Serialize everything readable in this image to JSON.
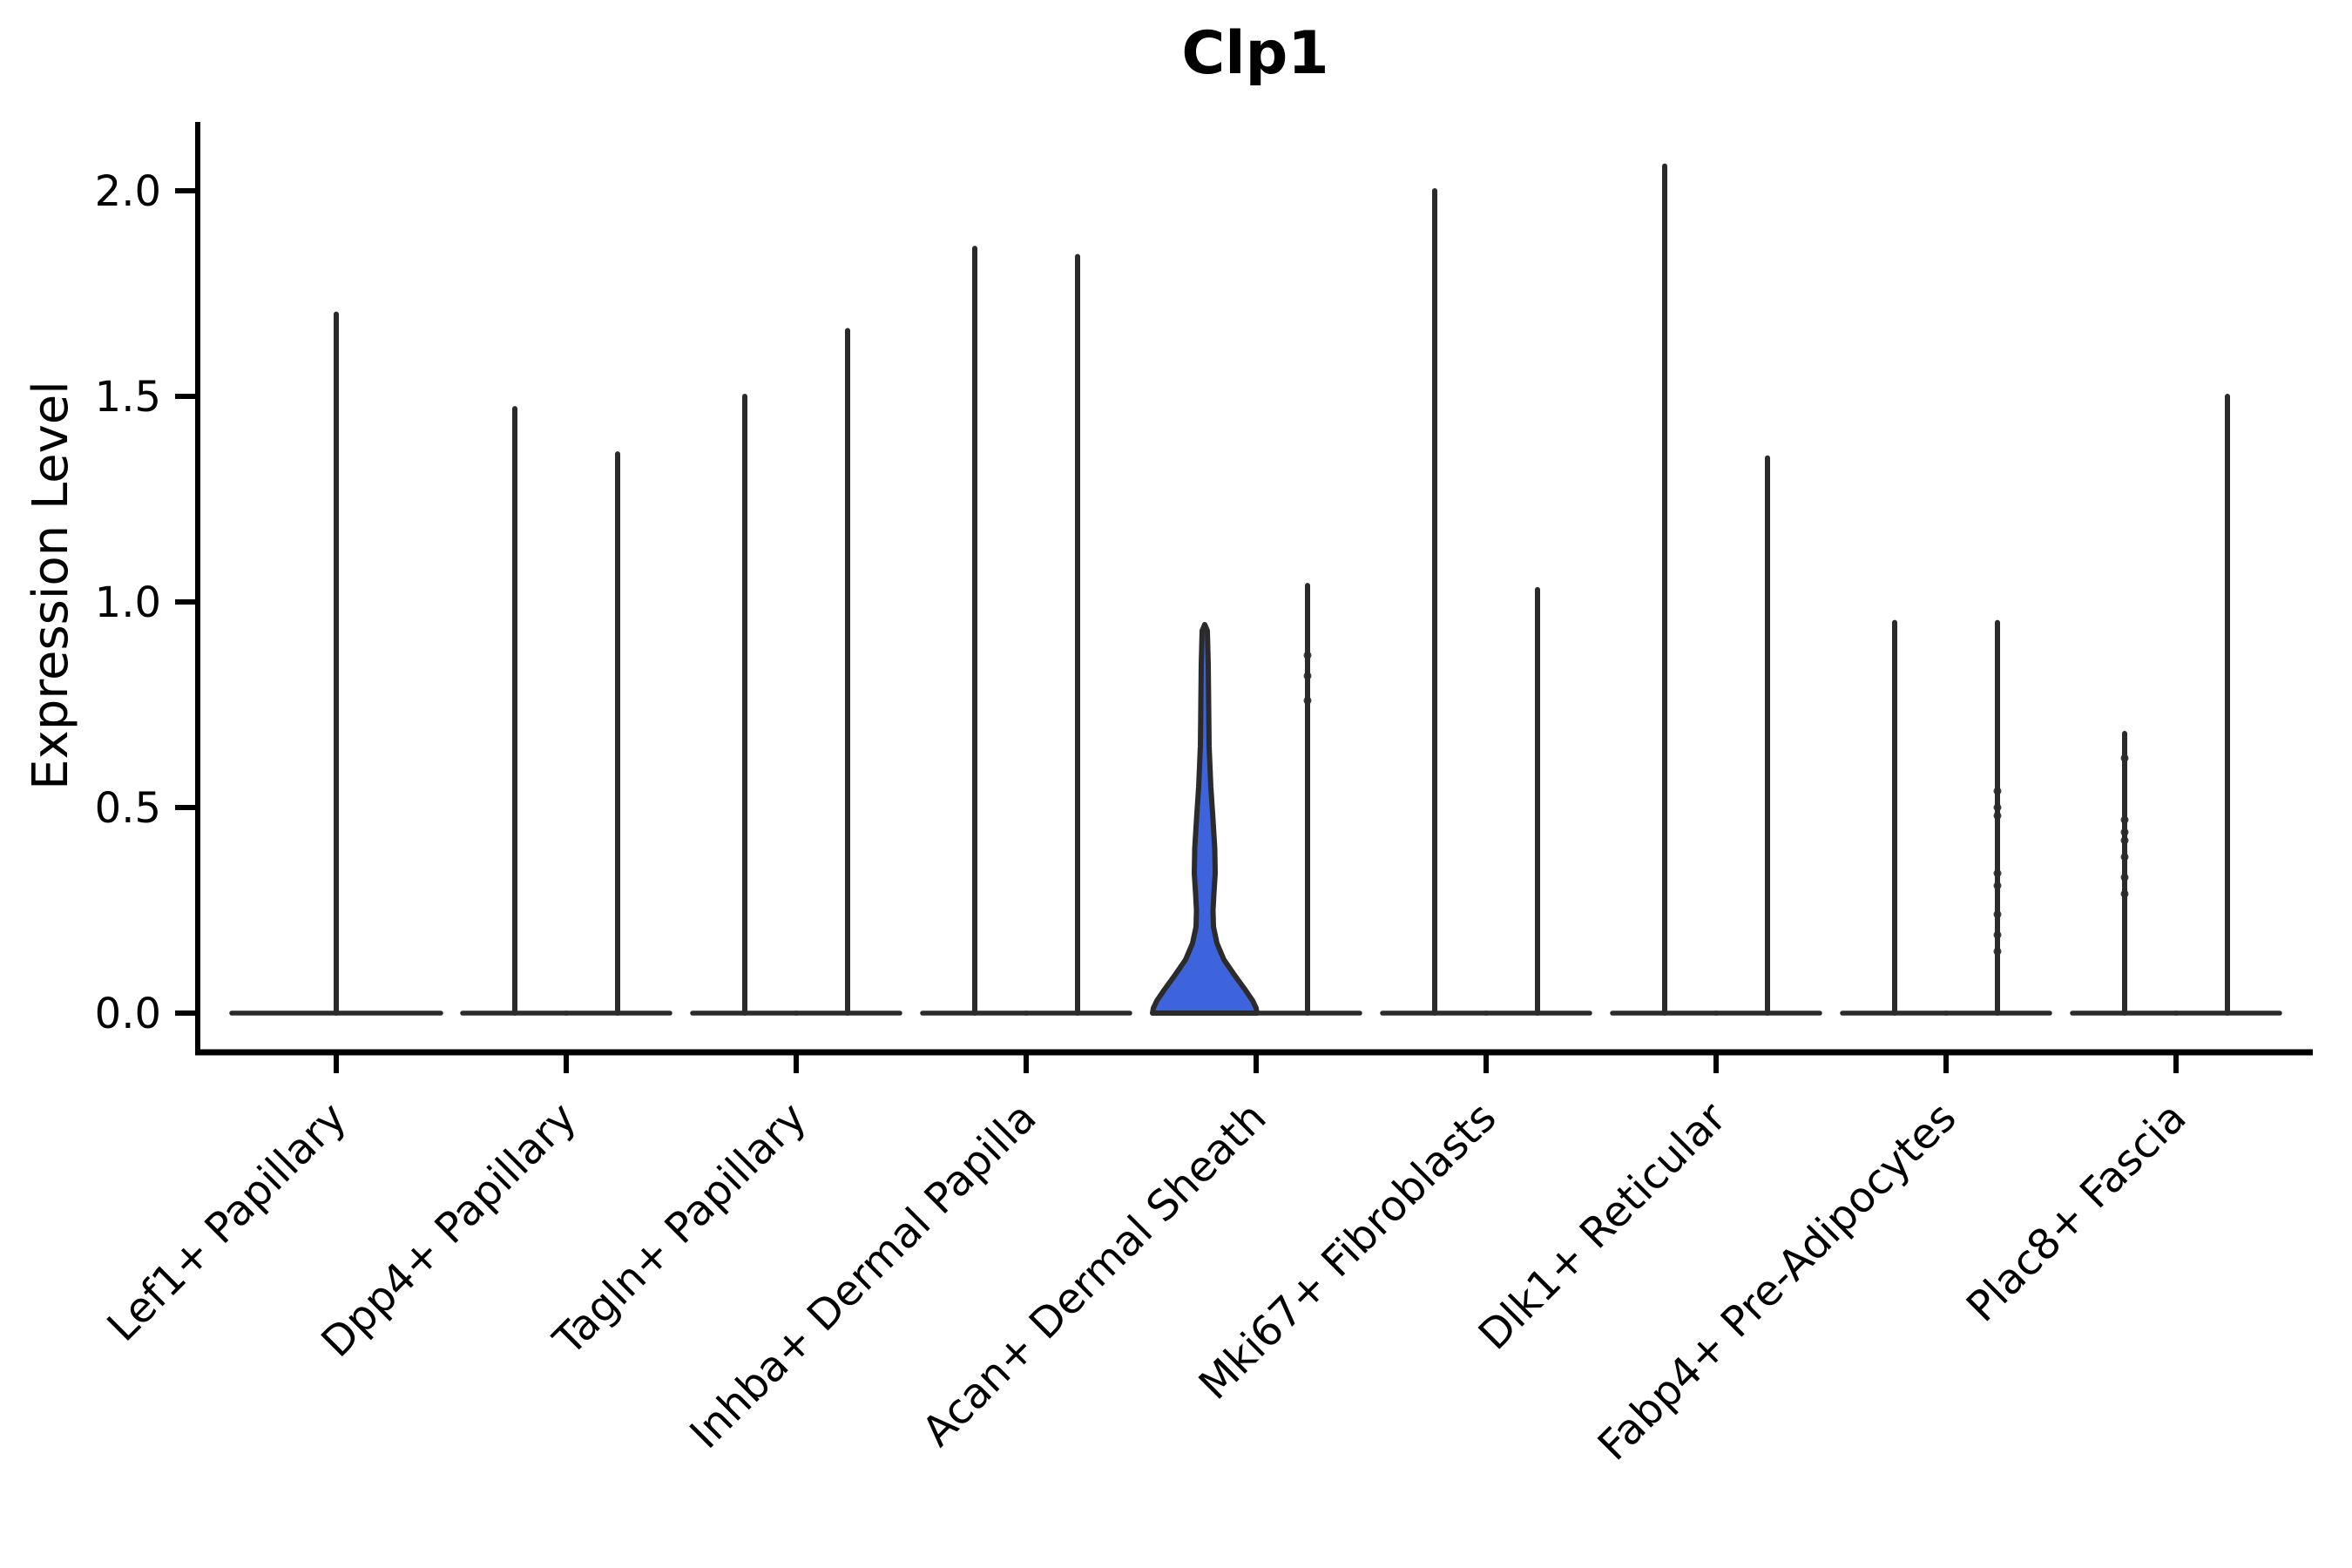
{
  "title": "Clp1",
  "colors": {
    "highlight_fill": "#3D64DD",
    "violin_stroke": "#2B2B2B",
    "axis": "#000000",
    "background": "#FFFFFF"
  },
  "chart_data": {
    "type": "violin",
    "title": "Clp1",
    "ylabel": "Expression Level",
    "xlabel": "",
    "ylim": [
      0,
      2.1
    ],
    "yticks": [
      0.0,
      0.5,
      1.0,
      1.5,
      2.0
    ],
    "grid": false,
    "legend": "none",
    "categories": [
      "Lef1+ Papillary",
      "Dpp4+ Papillary",
      "Tagln+ Papillary",
      "Inhba+ Dermal Papilla",
      "Acan+ Dermal Sheath",
      "Mki67+ Fibroblasts",
      "Dlk1+ Reticular",
      "Fabp4+ Pre-Adipocytes",
      "Plac8+ Fascia"
    ],
    "violins": [
      {
        "category_index": 0,
        "slot": "center",
        "max": 1.7,
        "highlight": false,
        "points": []
      },
      {
        "category_index": 1,
        "slot": "left",
        "max": 1.47,
        "highlight": false,
        "points": []
      },
      {
        "category_index": 1,
        "slot": "right",
        "max": 1.36,
        "highlight": false,
        "points": []
      },
      {
        "category_index": 2,
        "slot": "left",
        "max": 1.5,
        "highlight": false,
        "points": []
      },
      {
        "category_index": 2,
        "slot": "right",
        "max": 1.66,
        "highlight": false,
        "points": []
      },
      {
        "category_index": 3,
        "slot": "left",
        "max": 1.86,
        "highlight": false,
        "points": []
      },
      {
        "category_index": 3,
        "slot": "right",
        "max": 1.84,
        "highlight": false,
        "points": []
      },
      {
        "category_index": 4,
        "slot": "left",
        "max": 0.94,
        "highlight": true,
        "points": []
      },
      {
        "category_index": 4,
        "slot": "right",
        "max": 1.04,
        "highlight": false,
        "points": [
          0.87,
          0.82,
          0.76
        ]
      },
      {
        "category_index": 5,
        "slot": "left",
        "max": 2.0,
        "highlight": false,
        "points": []
      },
      {
        "category_index": 5,
        "slot": "right",
        "max": 1.03,
        "highlight": false,
        "points": []
      },
      {
        "category_index": 6,
        "slot": "left",
        "max": 2.06,
        "highlight": false,
        "points": []
      },
      {
        "category_index": 6,
        "slot": "right",
        "max": 1.35,
        "highlight": false,
        "points": []
      },
      {
        "category_index": 7,
        "slot": "left",
        "max": 0.95,
        "highlight": false,
        "points": []
      },
      {
        "category_index": 7,
        "slot": "right",
        "max": 0.95,
        "highlight": false,
        "points": [
          0.54,
          0.5,
          0.48,
          0.34,
          0.31,
          0.24,
          0.19,
          0.15
        ]
      },
      {
        "category_index": 8,
        "slot": "left",
        "max": 0.68,
        "highlight": false,
        "points": [
          0.62,
          0.47,
          0.44,
          0.42,
          0.38,
          0.33,
          0.29
        ]
      },
      {
        "category_index": 8,
        "slot": "right",
        "max": 1.5,
        "highlight": false,
        "points": []
      }
    ],
    "highlight_profile": [
      [
        0.945,
        0
      ],
      [
        0.93,
        3
      ],
      [
        0.85,
        4
      ],
      [
        0.75,
        4.5
      ],
      [
        0.65,
        5
      ],
      [
        0.55,
        7
      ],
      [
        0.47,
        9.5
      ],
      [
        0.4,
        11.5
      ],
      [
        0.34,
        12
      ],
      [
        0.29,
        10.5
      ],
      [
        0.25,
        9.5
      ],
      [
        0.21,
        10
      ],
      [
        0.17,
        14
      ],
      [
        0.13,
        22
      ],
      [
        0.09,
        35
      ],
      [
        0.055,
        47
      ],
      [
        0.03,
        55
      ],
      [
        0.012,
        59
      ],
      [
        0.0,
        60
      ]
    ]
  }
}
